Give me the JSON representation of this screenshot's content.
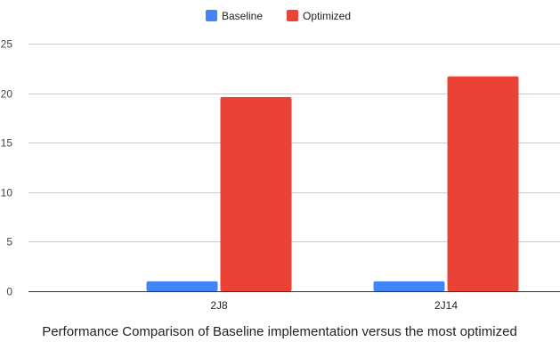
{
  "chart_data": {
    "type": "bar",
    "categories": [
      "2J8",
      "2J14"
    ],
    "series": [
      {
        "name": "Baseline",
        "values": [
          1,
          1
        ],
        "color": "#4285f4"
      },
      {
        "name": "Optimized",
        "values": [
          19.6,
          21.7
        ],
        "color": "#ea4335"
      }
    ],
    "y_ticks": [
      "0",
      "5",
      "10",
      "15",
      "20",
      "25"
    ],
    "ylim": [
      0,
      25
    ],
    "grid": true,
    "legend_position": "top-center",
    "caption": "Performance Comparison of Baseline implementation versus the most optimized"
  }
}
